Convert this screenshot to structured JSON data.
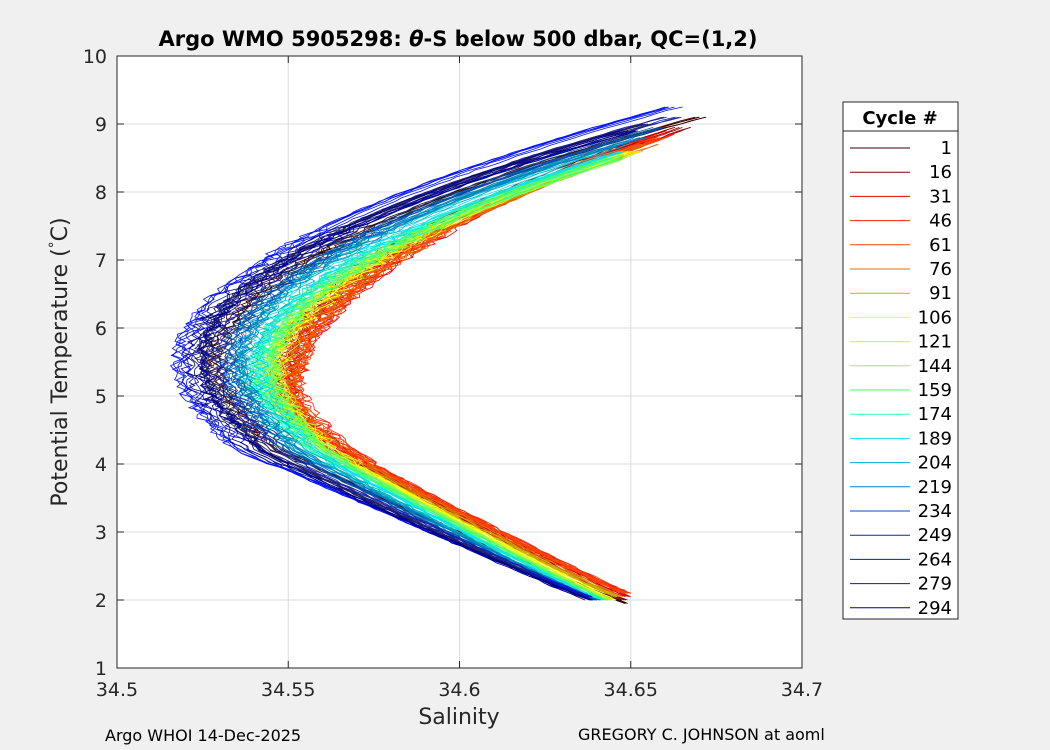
{
  "title_main": "Argo WMO 5905298: ",
  "title_theta": "θ",
  "title_rest": "-S below 500 dbar,  QC=(1,2)",
  "footer_left": "Argo WHOI 14-Dec-2025",
  "footer_right": "GREGORY C. JOHNSON at aoml",
  "legend_title": "Cycle #",
  "chart_data": {
    "type": "line",
    "xlabel": "Salinity",
    "ylabel_pre": "Potential Temperature (",
    "ylabel_deg": "°",
    "ylabel_post": "C)",
    "xlim": [
      34.5,
      34.7
    ],
    "ylim": [
      1,
      10
    ],
    "xticks": [
      "34.5",
      "34.55",
      "34.6",
      "34.65",
      "34.7"
    ],
    "yticks": [
      "1",
      "2",
      "3",
      "4",
      "5",
      "6",
      "7",
      "8",
      "9",
      "10"
    ],
    "grid": true,
    "legend_position": "right",
    "series": [
      {
        "name": "1",
        "color": "#3a0000",
        "min_s": 34.53,
        "mid_t": 5.5,
        "top_s": 34.671,
        "top_t": 9.1,
        "bot_s": 34.649,
        "bot_t": 1.95
      },
      {
        "name": "16",
        "color": "#800000",
        "min_s": 34.548,
        "mid_t": 5.3,
        "top_s": 34.665,
        "top_t": 8.95,
        "bot_s": 34.648,
        "bot_t": 2.0
      },
      {
        "name": "31",
        "color": "#e00000",
        "min_s": 34.549,
        "mid_t": 5.0,
        "top_s": 34.662,
        "top_t": 8.9,
        "bot_s": 34.649,
        "bot_t": 2.05
      },
      {
        "name": "46",
        "color": "#ff2000",
        "min_s": 34.551,
        "mid_t": 5.2,
        "top_s": 34.66,
        "top_t": 8.85,
        "bot_s": 34.649,
        "bot_t": 2.1
      },
      {
        "name": "61",
        "color": "#ff4400",
        "min_s": 34.55,
        "mid_t": 5.1,
        "top_s": 34.658,
        "top_t": 8.8,
        "bot_s": 34.648,
        "bot_t": 2.1
      },
      {
        "name": "76",
        "color": "#e07000",
        "min_s": 34.549,
        "mid_t": 5.2,
        "top_s": 34.655,
        "top_t": 8.7,
        "bot_s": 34.647,
        "bot_t": 2.05
      },
      {
        "name": "91",
        "color": "#d0b000",
        "min_s": 34.547,
        "mid_t": 5.3,
        "top_s": 34.652,
        "top_t": 8.6,
        "bot_s": 34.646,
        "bot_t": 2.05
      },
      {
        "name": "106",
        "color": "#ffff00",
        "min_s": 34.546,
        "mid_t": 5.3,
        "top_s": 34.65,
        "top_t": 8.6,
        "bot_s": 34.645,
        "bot_t": 2.0
      },
      {
        "name": "121",
        "color": "#c0ff30",
        "min_s": 34.545,
        "mid_t": 5.4,
        "top_s": 34.648,
        "top_t": 8.55,
        "bot_s": 34.644,
        "bot_t": 2.0
      },
      {
        "name": "144",
        "color": "#80ff60",
        "min_s": 34.544,
        "mid_t": 5.4,
        "top_s": 34.646,
        "top_t": 8.5,
        "bot_s": 34.643,
        "bot_t": 2.0
      },
      {
        "name": "159",
        "color": "#40ff60",
        "min_s": 34.543,
        "mid_t": 5.4,
        "top_s": 34.645,
        "top_t": 8.5,
        "bot_s": 34.642,
        "bot_t": 2.0
      },
      {
        "name": "174",
        "color": "#30ffb0",
        "min_s": 34.541,
        "mid_t": 5.4,
        "top_s": 34.645,
        "top_t": 8.55,
        "bot_s": 34.641,
        "bot_t": 2.0
      },
      {
        "name": "189",
        "color": "#10e0e8",
        "min_s": 34.54,
        "mid_t": 5.5,
        "top_s": 34.646,
        "top_t": 8.6,
        "bot_s": 34.641,
        "bot_t": 2.0
      },
      {
        "name": "204",
        "color": "#00b0c0",
        "min_s": 34.538,
        "mid_t": 5.5,
        "top_s": 34.648,
        "top_t": 8.7,
        "bot_s": 34.64,
        "bot_t": 2.0
      },
      {
        "name": "219",
        "color": "#0080c0",
        "min_s": 34.535,
        "mid_t": 5.5,
        "top_s": 34.652,
        "top_t": 8.8,
        "bot_s": 34.64,
        "bot_t": 2.0
      },
      {
        "name": "234",
        "color": "#0050b0",
        "min_s": 34.532,
        "mid_t": 5.5,
        "top_s": 34.658,
        "top_t": 8.95,
        "bot_s": 34.639,
        "bot_t": 2.0
      },
      {
        "name": "249",
        "color": "#1a20a0",
        "min_s": 34.528,
        "mid_t": 5.6,
        "top_s": 34.662,
        "top_t": 9.1,
        "bot_s": 34.638,
        "bot_t": 2.05
      },
      {
        "name": "264",
        "color": "#0010ff",
        "min_s": 34.52,
        "mid_t": 5.5,
        "top_s": 34.663,
        "top_t": 9.25,
        "bot_s": 34.638,
        "bot_t": 2.05
      },
      {
        "name": "279",
        "color": "#202060",
        "min_s": 34.526,
        "mid_t": 5.6,
        "top_s": 34.655,
        "top_t": 9.0,
        "bot_s": 34.639,
        "bot_t": 2.0
      },
      {
        "name": "294",
        "color": "#000090",
        "min_s": 34.523,
        "mid_t": 5.5,
        "top_s": 34.65,
        "top_t": 8.9,
        "bot_s": 34.638,
        "bot_t": 2.0
      }
    ]
  }
}
